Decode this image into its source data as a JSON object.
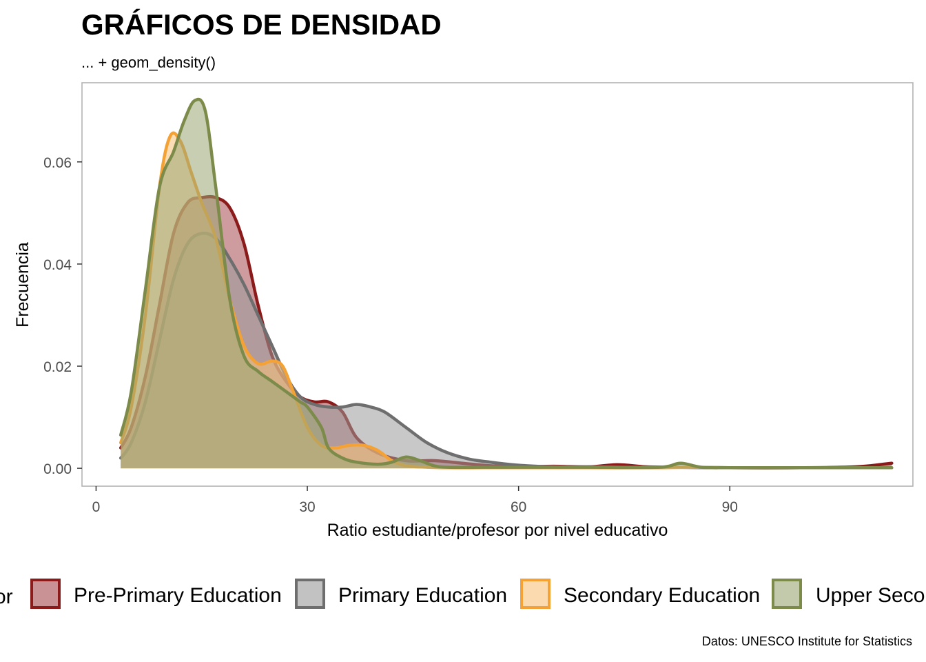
{
  "title": "GRÁFICOS DE DENSIDAD",
  "subtitle": "... + geom_density()",
  "caption": "Datos: UNESCO Institute for Statistics",
  "chart_data": {
    "type": "area",
    "xlabel": "Ratio estudiante/profesor por nivel educativo",
    "ylabel": "Frecuencia",
    "xlim": [
      -2,
      116
    ],
    "ylim": [
      -0.0035,
      0.0755
    ],
    "x_ticks": [
      0,
      30,
      60,
      90
    ],
    "x_tick_labels": [
      "0",
      "30",
      "60",
      "90"
    ],
    "y_ticks": [
      0,
      0.02,
      0.04,
      0.06
    ],
    "y_tick_labels": [
      "0.00",
      "0.02",
      "0.04",
      "0.06"
    ],
    "grid": false,
    "legend_position": "bottom",
    "legend_title": "or",
    "series": [
      {
        "name": "Pre-Primary Education",
        "color": "#8b1a1a",
        "fill": "#a54b4e",
        "x": [
          3.5,
          5,
          7,
          9,
          11,
          13,
          15,
          17,
          19,
          21,
          23,
          25,
          27,
          29,
          31,
          33,
          35,
          37,
          40,
          44,
          48,
          52,
          56,
          60,
          65,
          70,
          74,
          78,
          82,
          90,
          100,
          108,
          113
        ],
        "y": [
          0.004,
          0.008,
          0.018,
          0.032,
          0.046,
          0.052,
          0.053,
          0.053,
          0.051,
          0.044,
          0.032,
          0.022,
          0.017,
          0.014,
          0.013,
          0.013,
          0.011,
          0.006,
          0.003,
          0.0015,
          0.0015,
          0.001,
          0.0005,
          0.0003,
          0.0004,
          0.0003,
          0.0007,
          0.0003,
          0.0002,
          0.0001,
          0.0001,
          0.0003,
          0.001
        ]
      },
      {
        "name": "Primary Education",
        "color": "#6e6e6e",
        "fill": "#9a9a9a",
        "x": [
          3.5,
          5,
          7,
          9,
          11,
          13,
          15,
          17,
          19,
          21,
          23,
          25,
          27,
          29,
          31,
          33,
          35,
          37,
          39,
          41,
          44,
          47,
          50,
          53,
          56,
          60,
          65,
          70,
          75,
          80,
          90,
          100,
          113
        ],
        "y": [
          0.002,
          0.005,
          0.013,
          0.025,
          0.037,
          0.044,
          0.046,
          0.045,
          0.041,
          0.036,
          0.03,
          0.024,
          0.018,
          0.014,
          0.0125,
          0.012,
          0.012,
          0.0125,
          0.012,
          0.011,
          0.008,
          0.005,
          0.003,
          0.0018,
          0.0012,
          0.0006,
          0.0003,
          0.0003,
          0.0002,
          0.0002,
          0.0001,
          0.0001,
          0.0001
        ]
      },
      {
        "name": "Secondary Education",
        "color": "#f4a235",
        "fill": "#f8c27a",
        "x": [
          3.5,
          5,
          7,
          9,
          10.5,
          12,
          13.5,
          15,
          17,
          19,
          21,
          23,
          25,
          26.5,
          28,
          30,
          32,
          34,
          36,
          38,
          40,
          42,
          44,
          47,
          50,
          55,
          60,
          70,
          80,
          85,
          90,
          100,
          113
        ],
        "y": [
          0.005,
          0.012,
          0.03,
          0.055,
          0.065,
          0.064,
          0.058,
          0.052,
          0.045,
          0.033,
          0.024,
          0.0205,
          0.021,
          0.02,
          0.015,
          0.008,
          0.0045,
          0.004,
          0.0045,
          0.0045,
          0.0035,
          0.0015,
          0.0005,
          0.0002,
          0.0001,
          0.0001,
          0.0001,
          0.0001,
          0.0001,
          0.0002,
          0.0001,
          0.0001,
          0.0001
        ]
      },
      {
        "name": "Upper Secondary Education",
        "color": "#7d8b4a",
        "fill": "#9aa673",
        "x": [
          3.5,
          5,
          7,
          9,
          11,
          12.5,
          14,
          15.5,
          17,
          19,
          21,
          23,
          25,
          27,
          29,
          30,
          32,
          33,
          35,
          37,
          40,
          42,
          44,
          46,
          48,
          50,
          55,
          60,
          70,
          80,
          83,
          86,
          90,
          100,
          113
        ],
        "y": [
          0.0065,
          0.015,
          0.035,
          0.055,
          0.062,
          0.068,
          0.072,
          0.07,
          0.055,
          0.033,
          0.022,
          0.019,
          0.017,
          0.015,
          0.013,
          0.012,
          0.008,
          0.004,
          0.002,
          0.0012,
          0.0008,
          0.0012,
          0.0022,
          0.0015,
          0.0005,
          0.0002,
          0.0002,
          0.0002,
          0.0002,
          0.0002,
          0.001,
          0.0002,
          0.0001,
          0.0001,
          0.0001
        ]
      }
    ]
  }
}
